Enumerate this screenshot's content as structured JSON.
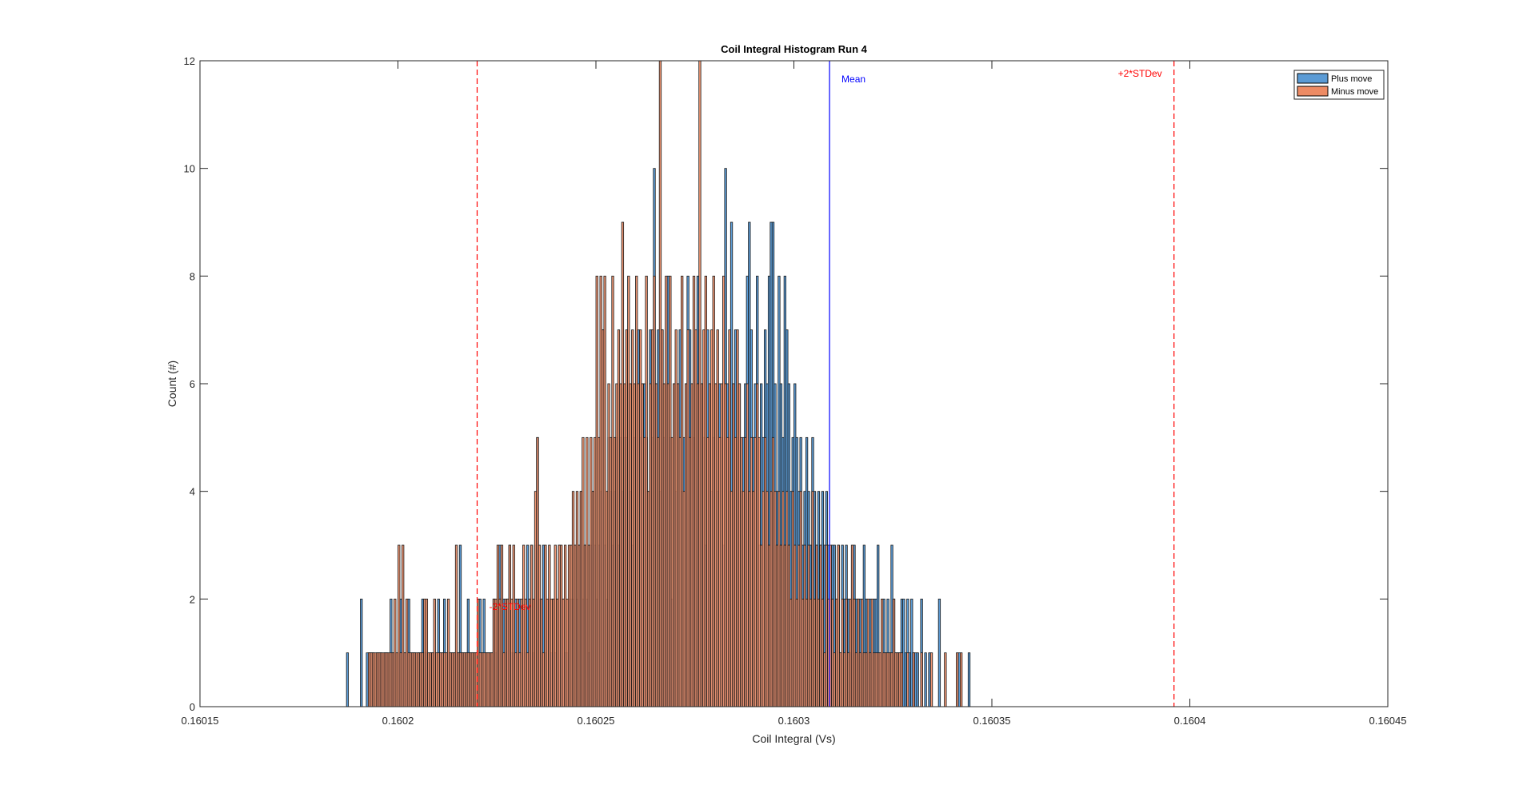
{
  "chart_data": {
    "type": "bar",
    "subtype": "histogram",
    "title": "Coil Integral Histogram Run 4",
    "xlabel": "Coil Integral (Vs)",
    "ylabel": "Count (#)",
    "xlim": [
      0.16015,
      0.16045
    ],
    "ylim": [
      0,
      12
    ],
    "xticks": [
      "0.16015",
      "0.1602",
      "0.16025",
      "0.1603",
      "0.16035",
      "0.1604",
      "0.16045"
    ],
    "yticks": [
      "0",
      "2",
      "4",
      "6",
      "8",
      "10",
      "12"
    ],
    "grid": false,
    "legend_position": "top-right",
    "bin_start": 0.160187,
    "bin_width": 5e-07,
    "series": [
      {
        "name": "Plus move",
        "color": "#5b9bd5",
        "values": [
          1,
          0,
          0,
          0,
          0,
          0,
          0,
          2,
          0,
          0,
          1,
          1,
          1,
          1,
          0,
          1,
          1,
          1,
          0,
          1,
          1,
          0,
          2,
          1,
          1,
          0,
          1,
          2,
          1,
          1,
          1,
          2,
          1,
          1,
          1,
          0,
          1,
          1,
          2,
          1,
          1,
          0,
          1,
          1,
          1,
          0,
          2,
          1,
          1,
          2,
          1,
          1,
          1,
          1,
          1,
          1,
          1,
          3,
          1,
          1,
          1,
          2,
          1,
          1,
          1,
          1,
          1,
          2,
          1,
          2,
          1,
          1,
          1,
          1,
          2,
          1,
          2,
          3,
          2,
          2,
          1,
          2,
          3,
          1,
          1,
          2,
          1,
          2,
          1,
          2,
          1,
          3,
          2,
          3,
          1,
          3,
          5,
          2,
          2,
          3,
          1,
          0,
          2,
          1,
          2,
          1,
          2,
          3,
          2,
          2,
          1,
          1,
          2,
          2,
          2,
          3,
          2,
          3,
          4,
          2,
          3,
          2,
          1,
          3,
          4,
          3,
          2,
          3,
          4,
          7,
          3,
          2,
          5,
          4,
          3,
          4,
          5,
          3,
          5,
          4,
          5,
          5,
          6,
          4,
          3,
          5,
          6,
          7,
          5,
          6,
          6,
          5,
          4,
          7,
          5,
          10,
          6,
          7,
          4,
          7,
          5,
          6,
          8,
          5,
          2,
          6,
          4,
          6,
          7,
          4,
          5,
          6,
          8,
          7,
          6,
          5,
          6,
          8,
          7,
          6,
          5,
          3,
          7,
          6,
          4,
          5,
          6,
          4,
          6,
          5,
          3,
          10,
          6,
          5,
          9,
          6,
          7,
          5,
          6,
          4,
          5,
          6,
          8,
          9,
          7,
          5,
          6,
          8,
          3,
          6,
          5,
          7,
          6,
          8,
          9,
          9,
          6,
          4,
          8,
          6,
          5,
          8,
          7,
          6,
          4,
          5,
          6,
          5,
          4,
          5,
          3,
          4,
          5,
          4,
          3,
          5,
          4,
          3,
          4,
          3,
          4,
          3,
          4,
          3,
          2,
          3,
          3,
          2,
          3,
          1,
          3,
          2,
          3,
          2,
          1,
          2,
          3,
          2,
          2,
          2,
          1,
          3,
          2,
          1,
          2,
          1,
          2,
          2,
          3,
          1,
          1,
          2,
          1,
          2,
          1,
          3,
          2,
          1,
          1,
          1,
          2,
          2,
          1,
          2,
          1,
          2,
          1,
          1,
          1,
          0,
          2,
          0,
          1,
          0,
          1,
          0,
          0,
          0,
          0,
          2,
          0,
          0,
          0,
          0,
          0,
          0,
          0,
          0,
          0,
          1,
          0,
          0,
          0,
          0,
          1,
          0,
          0,
          0,
          0,
          0,
          0,
          0,
          0,
          0,
          0,
          0,
          0,
          0,
          0,
          0,
          0,
          0,
          0,
          0,
          0,
          0,
          0,
          0,
          0
        ]
      },
      {
        "name": "Minus move",
        "color": "#ed8b64",
        "values": [
          0,
          0,
          0,
          0,
          0,
          0,
          0,
          0,
          0,
          0,
          0,
          1,
          1,
          1,
          1,
          1,
          1,
          1,
          1,
          1,
          1,
          1,
          1,
          1,
          2,
          1,
          3,
          1,
          3,
          1,
          2,
          1,
          1,
          1,
          1,
          1,
          1,
          1,
          1,
          2,
          2,
          1,
          1,
          1,
          2,
          1,
          1,
          1,
          1,
          1,
          1,
          2,
          1,
          1,
          1,
          3,
          1,
          1,
          1,
          1,
          1,
          1,
          1,
          1,
          1,
          1,
          2,
          1,
          1,
          1,
          1,
          1,
          1,
          1,
          2,
          2,
          3,
          2,
          3,
          1,
          2,
          2,
          3,
          2,
          3,
          1,
          2,
          1,
          2,
          3,
          2,
          1,
          2,
          3,
          2,
          4,
          5,
          3,
          2,
          1,
          3,
          2,
          3,
          2,
          2,
          3,
          2,
          3,
          3,
          2,
          3,
          2,
          3,
          3,
          4,
          3,
          4,
          3,
          4,
          5,
          3,
          5,
          3,
          5,
          4,
          5,
          8,
          5,
          8,
          7,
          8,
          4,
          6,
          5,
          8,
          5,
          6,
          7,
          6,
          9,
          6,
          7,
          8,
          6,
          7,
          6,
          8,
          6,
          7,
          6,
          5,
          8,
          4,
          6,
          7,
          8,
          6,
          5,
          12,
          7,
          6,
          8,
          6,
          8,
          5,
          6,
          7,
          6,
          5,
          8,
          4,
          6,
          7,
          5,
          6,
          8,
          7,
          6,
          12,
          6,
          7,
          8,
          5,
          6,
          7,
          8,
          6,
          7,
          5,
          6,
          8,
          6,
          5,
          7,
          4,
          6,
          5,
          7,
          6,
          5,
          4,
          5,
          6,
          4,
          5,
          4,
          5,
          6,
          5,
          3,
          4,
          5,
          4,
          3,
          4,
          5,
          4,
          3,
          4,
          3,
          4,
          3,
          4,
          3,
          2,
          4,
          3,
          2,
          3,
          4,
          2,
          3,
          2,
          3,
          2,
          4,
          2,
          3,
          2,
          3,
          2,
          1,
          3,
          2,
          3,
          2,
          1,
          2,
          3,
          1,
          2,
          1,
          2,
          1,
          2,
          3,
          2,
          1,
          2,
          1,
          2,
          1,
          1,
          2,
          1,
          2,
          1,
          1,
          1,
          1,
          2,
          1,
          1,
          1,
          1,
          1,
          2,
          1,
          1,
          1,
          1,
          0,
          0,
          1,
          0,
          0,
          1,
          0,
          0,
          0,
          1,
          0,
          0,
          0,
          0,
          1,
          0,
          0,
          0,
          0,
          0,
          0,
          1,
          0,
          0,
          0,
          0,
          0,
          1,
          0,
          1,
          0,
          0,
          0,
          0,
          0,
          0,
          0,
          0,
          0,
          0,
          0,
          0,
          0,
          0,
          0,
          0,
          0,
          0,
          0,
          0,
          0,
          0,
          0
        ]
      }
    ],
    "reference_lines": [
      {
        "label": "-2*STDev",
        "x": 0.16022,
        "color": "#ff0000",
        "style": "dashed"
      },
      {
        "label": "Mean",
        "x": 0.160309,
        "color": "#0000ff",
        "style": "solid"
      },
      {
        "label": "+2*STDev",
        "x": 0.160396,
        "color": "#ff0000",
        "style": "dashed"
      }
    ]
  }
}
